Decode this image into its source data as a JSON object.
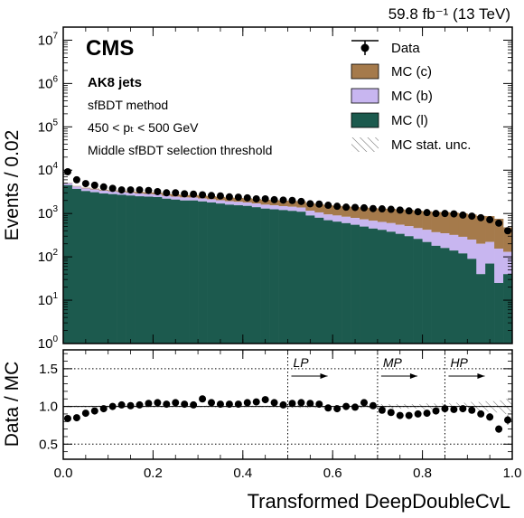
{
  "header": {
    "lumi": "59.8 fb⁻¹ (13 TeV)",
    "experiment": "CMS",
    "lines": [
      "AK8 jets",
      "sfBDT method",
      "450 < pₜ < 500 GeV",
      "Middle sfBDT selection threshold"
    ]
  },
  "legend": {
    "position": "top-right",
    "entries": [
      "Data",
      "MC (c)",
      "MC (b)",
      "MC (l)",
      "MC stat. unc."
    ]
  },
  "colors": {
    "mc_c": "#a57a4b",
    "mc_b": "#c8b6f0",
    "mc_l": "#1c5a4e",
    "data": "#000000"
  },
  "chart_data": [
    {
      "type": "area",
      "stacked": true,
      "log_y": true,
      "ylabel": "Events / 0.02",
      "xlim": [
        0,
        1
      ],
      "ylim": [
        1,
        20000000
      ],
      "y_ticks": [
        {
          "value": 1,
          "base": "10",
          "exp": "0"
        },
        {
          "value": 10,
          "base": "10",
          "exp": "1"
        },
        {
          "value": 100,
          "base": "10",
          "exp": "2"
        },
        {
          "value": 1000,
          "base": "10",
          "exp": "3"
        },
        {
          "value": 10000,
          "base": "10",
          "exp": "4"
        },
        {
          "value": 100000,
          "base": "10",
          "exp": "5"
        },
        {
          "value": 1000000,
          "base": "10",
          "exp": "6"
        },
        {
          "value": 10000000,
          "base": "10",
          "exp": "7"
        }
      ],
      "bin_width": 0.02,
      "series": [
        {
          "name": "MC (l)",
          "values": [
            4500,
            3700,
            3300,
            3100,
            2900,
            2800,
            2700,
            2600,
            2500,
            2450,
            2400,
            2200,
            2100,
            2000,
            2000,
            1900,
            1800,
            1700,
            1600,
            1550,
            1500,
            1400,
            1300,
            1250,
            1200,
            1150,
            1100,
            900,
            800,
            700,
            650,
            600,
            550,
            500,
            450,
            420,
            380,
            340,
            300,
            260,
            220,
            180,
            160,
            140,
            120,
            90,
            40,
            70,
            25,
            40
          ]
        },
        {
          "name": "MC (b)",
          "values": [
            500,
            500,
            500,
            500,
            480,
            450,
            430,
            420,
            400,
            380,
            370,
            360,
            350,
            350,
            340,
            330,
            330,
            320,
            320,
            310,
            300,
            300,
            300,
            290,
            280,
            280,
            270,
            260,
            260,
            250,
            250,
            240,
            240,
            230,
            230,
            220,
            220,
            210,
            210,
            200,
            200,
            190,
            190,
            180,
            170,
            160,
            160,
            150,
            130,
            90
          ]
        },
        {
          "name": "MC (c)",
          "values": [
            100,
            110,
            130,
            150,
            160,
            170,
            180,
            200,
            220,
            230,
            250,
            280,
            300,
            320,
            340,
            360,
            380,
            400,
            420,
            430,
            450,
            460,
            480,
            500,
            500,
            520,
            540,
            560,
            580,
            600,
            600,
            620,
            620,
            640,
            650,
            660,
            680,
            690,
            700,
            700,
            710,
            720,
            730,
            730,
            720,
            700,
            680,
            650,
            600,
            350
          ]
        },
        {
          "name": "Data",
          "values": [
            9200,
            6000,
            4900,
            4500,
            4100,
            3800,
            3500,
            3500,
            3500,
            3400,
            3200,
            3000,
            3000,
            2850,
            2800,
            2700,
            2600,
            2550,
            2420,
            2380,
            2300,
            2180,
            2180,
            2080,
            2040,
            2000,
            1900,
            1680,
            1650,
            1550,
            1470,
            1400,
            1380,
            1350,
            1300,
            1280,
            1250,
            1200,
            1150,
            1100,
            1050,
            1000,
            1000,
            980,
            920,
            870,
            800,
            720,
            600,
            400
          ]
        }
      ]
    },
    {
      "type": "scatter",
      "xlabel": "Transformed DeepDoubleCvL",
      "ylabel": "Data / MC",
      "xlim": [
        0,
        1
      ],
      "ylim": [
        0.3,
        1.75
      ],
      "y_ticks": [
        "0.5",
        "1.0",
        "1.5"
      ],
      "x_ticks": [
        "0.0",
        "0.2",
        "0.4",
        "0.6",
        "0.8",
        "1.0"
      ],
      "series": [
        {
          "name": "Data / MC",
          "x": [
            0.01,
            0.03,
            0.05,
            0.07,
            0.09,
            0.11,
            0.13,
            0.15,
            0.17,
            0.19,
            0.21,
            0.23,
            0.25,
            0.27,
            0.29,
            0.31,
            0.33,
            0.35,
            0.37,
            0.39,
            0.41,
            0.43,
            0.45,
            0.47,
            0.49,
            0.51,
            0.53,
            0.55,
            0.57,
            0.59,
            0.61,
            0.63,
            0.65,
            0.67,
            0.69,
            0.71,
            0.73,
            0.75,
            0.77,
            0.79,
            0.81,
            0.83,
            0.85,
            0.87,
            0.89,
            0.91,
            0.93,
            0.95,
            0.97,
            0.99
          ],
          "y": [
            0.84,
            0.85,
            0.91,
            0.94,
            0.97,
            1.0,
            1.02,
            1.01,
            1.02,
            1.04,
            1.05,
            1.03,
            1.05,
            1.03,
            1.02,
            1.1,
            1.05,
            1.03,
            1.03,
            1.03,
            1.05,
            1.06,
            1.09,
            1.05,
            1.02,
            1.04,
            1.05,
            1.04,
            1.03,
            0.98,
            0.97,
            1.0,
            0.99,
            1.05,
            1.01,
            0.95,
            0.92,
            0.88,
            0.88,
            0.9,
            0.91,
            0.94,
            0.97,
            0.96,
            0.97,
            0.95,
            0.9,
            0.86,
            0.7,
            0.82
          ],
          "y_err": [
            0.02,
            0.02,
            0.02,
            0.02,
            0.02,
            0.02,
            0.02,
            0.02,
            0.02,
            0.02,
            0.02,
            0.02,
            0.02,
            0.02,
            0.02,
            0.02,
            0.02,
            0.02,
            0.02,
            0.02,
            0.02,
            0.02,
            0.02,
            0.02,
            0.02,
            0.02,
            0.02,
            0.02,
            0.02,
            0.02,
            0.02,
            0.02,
            0.02,
            0.02,
            0.02,
            0.03,
            0.03,
            0.03,
            0.03,
            0.03,
            0.03,
            0.03,
            0.03,
            0.03,
            0.04,
            0.04,
            0.04,
            0.05,
            0.05,
            0.06
          ]
        }
      ],
      "mc_stat_unc": [
        0.01,
        0.01,
        0.01,
        0.01,
        0.01,
        0.01,
        0.01,
        0.01,
        0.01,
        0.01,
        0.01,
        0.01,
        0.01,
        0.01,
        0.01,
        0.01,
        0.01,
        0.01,
        0.01,
        0.01,
        0.01,
        0.01,
        0.01,
        0.01,
        0.01,
        0.02,
        0.02,
        0.02,
        0.02,
        0.02,
        0.02,
        0.02,
        0.02,
        0.02,
        0.02,
        0.03,
        0.03,
        0.03,
        0.03,
        0.03,
        0.04,
        0.04,
        0.04,
        0.05,
        0.05,
        0.06,
        0.06,
        0.07,
        0.08,
        0.1
      ],
      "reference_line": 1.0,
      "dotted_hlines": [
        0.5,
        1.0,
        1.5
      ],
      "regions": [
        {
          "label": "LP",
          "start": 0.5
        },
        {
          "label": "MP",
          "start": 0.7
        },
        {
          "label": "HP",
          "start": 0.85
        }
      ]
    }
  ]
}
